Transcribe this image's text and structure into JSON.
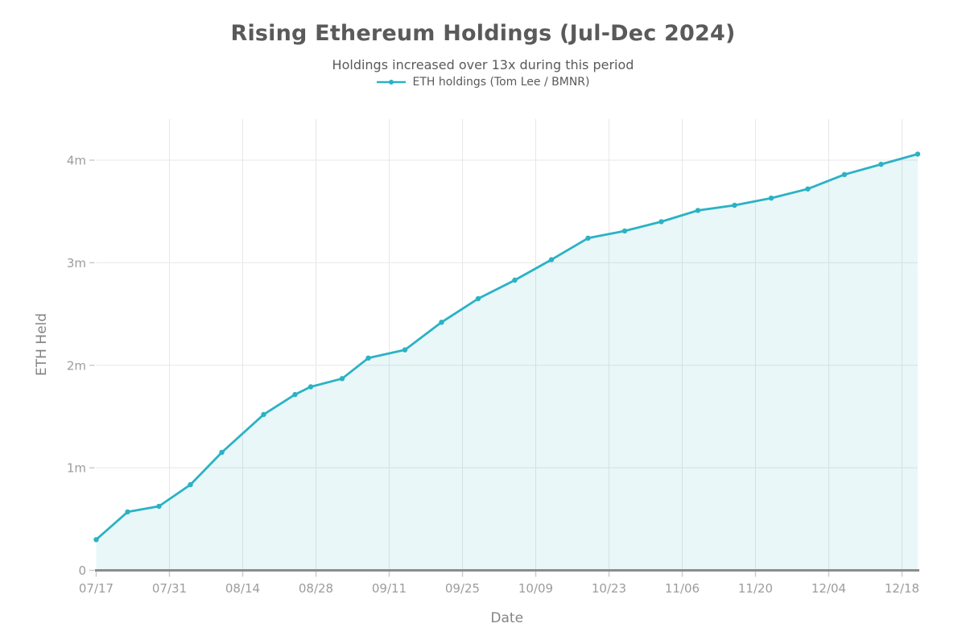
{
  "chart_data": {
    "type": "area",
    "title": "Rising Ethereum Holdings (Jul-Dec 2024)",
    "subtitle": "Holdings increased over 13x during this period",
    "xlabel": "Date",
    "ylabel": "ETH Held",
    "legend_position": "top",
    "grid": true,
    "x_start_date": "07/17",
    "x_tick_interval_days": 14,
    "x_tick_labels": [
      "07/17",
      "07/31",
      "08/14",
      "08/28",
      "09/11",
      "09/25",
      "10/09",
      "10/23",
      "11/06",
      "11/20",
      "12/04",
      "12/18"
    ],
    "y_ticks": [
      {
        "value": 0,
        "label": "0"
      },
      {
        "value": 1000000,
        "label": "1m"
      },
      {
        "value": 2000000,
        "label": "2m"
      },
      {
        "value": 3000000,
        "label": "3m"
      },
      {
        "value": 4000000,
        "label": "4m"
      }
    ],
    "ylim": [
      0,
      4400000
    ],
    "series": [
      {
        "name": "ETH holdings (Tom Lee / BMNR)",
        "points": [
          {
            "date": "07/17",
            "value": 300000
          },
          {
            "date": "07/23",
            "value": 570000
          },
          {
            "date": "07/29",
            "value": 625000
          },
          {
            "date": "08/04",
            "value": 835000
          },
          {
            "date": "08/10",
            "value": 1150000
          },
          {
            "date": "08/18",
            "value": 1520000
          },
          {
            "date": "08/24",
            "value": 1715000
          },
          {
            "date": "08/27",
            "value": 1790000
          },
          {
            "date": "09/02",
            "value": 1870000
          },
          {
            "date": "09/07",
            "value": 2070000
          },
          {
            "date": "09/14",
            "value": 2150000
          },
          {
            "date": "09/21",
            "value": 2420000
          },
          {
            "date": "09/28",
            "value": 2650000
          },
          {
            "date": "10/05",
            "value": 2830000
          },
          {
            "date": "10/12",
            "value": 3030000
          },
          {
            "date": "10/19",
            "value": 3240000
          },
          {
            "date": "10/26",
            "value": 3310000
          },
          {
            "date": "11/02",
            "value": 3400000
          },
          {
            "date": "11/09",
            "value": 3510000
          },
          {
            "date": "11/16",
            "value": 3560000
          },
          {
            "date": "11/23",
            "value": 3630000
          },
          {
            "date": "11/30",
            "value": 3720000
          },
          {
            "date": "12/07",
            "value": 3860000
          },
          {
            "date": "12/14",
            "value": 3960000
          },
          {
            "date": "12/21",
            "value": 4060000
          }
        ]
      }
    ],
    "colors": {
      "line": "#2ab2c5",
      "fill": "#2ab2c5",
      "fill_opacity": 0.1,
      "axis_line": "#8c8c8c",
      "grid_line": "#e7e7e7",
      "tick_mark": "#cccccc",
      "tick_label": "#9c9c9c",
      "axis_title": "#848484",
      "title": "#5a5a5a",
      "subtitle": "#5a5a5a"
    }
  }
}
